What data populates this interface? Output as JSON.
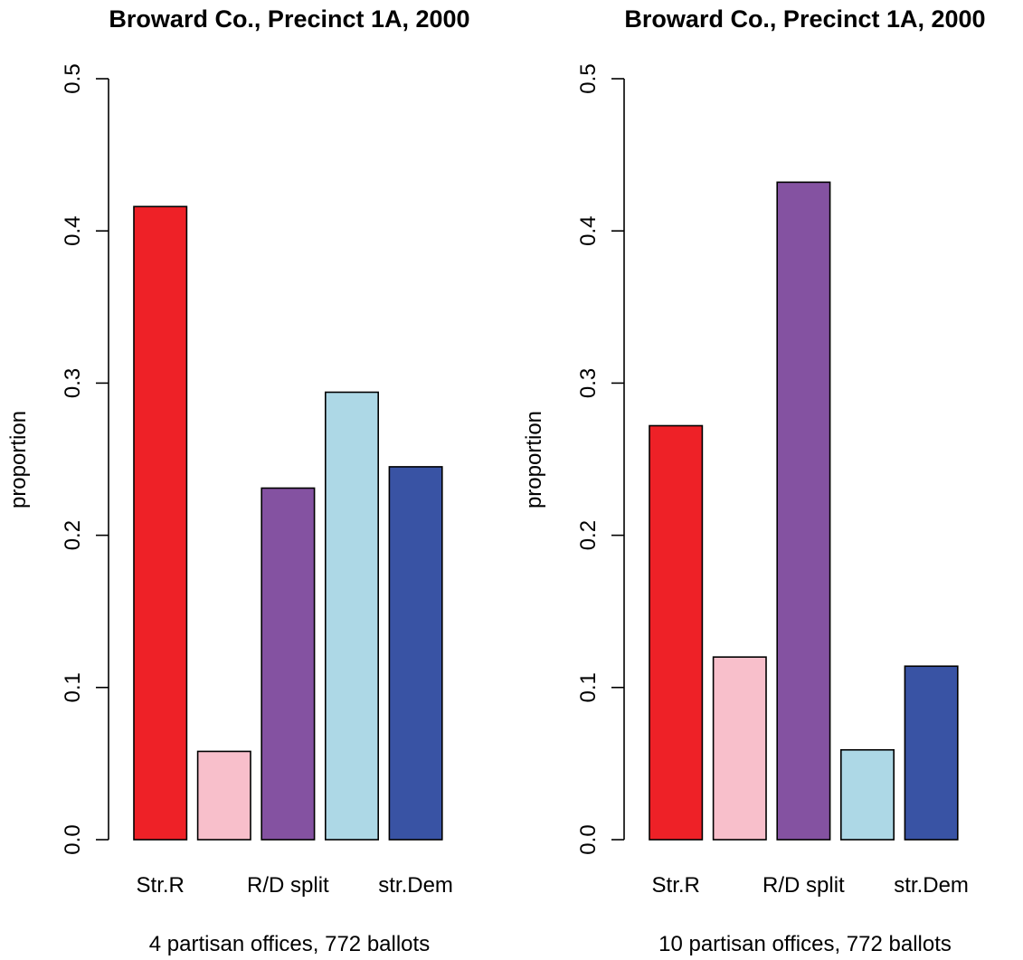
{
  "chart_data": [
    {
      "type": "bar",
      "title": "Broward Co., Precinct 1A, 2000",
      "xlabel": "4 partisan offices, 772 ballots",
      "ylabel": "proportion",
      "ylim": [
        0,
        0.5
      ],
      "yticks": [
        "0.0",
        "0.1",
        "0.2",
        "0.3",
        "0.4",
        "0.5"
      ],
      "category_labels": [
        "Str.R",
        "",
        "R/D split",
        "",
        "str.Dem"
      ],
      "values": [
        0.416,
        0.058,
        0.231,
        0.294,
        0.245
      ],
      "colors": [
        "#ee2127",
        "#f8bfcb",
        "#8452a1",
        "#add8e6",
        "#3953a4"
      ],
      "grid": false,
      "legend": "none"
    },
    {
      "type": "bar",
      "title": "Broward Co., Precinct 1A, 2000",
      "xlabel": "10 partisan offices, 772 ballots",
      "ylabel": "proportion",
      "ylim": [
        0,
        0.5
      ],
      "yticks": [
        "0.0",
        "0.1",
        "0.2",
        "0.3",
        "0.4",
        "0.5"
      ],
      "category_labels": [
        "Str.R",
        "",
        "R/D split",
        "",
        "str.Dem"
      ],
      "values": [
        0.272,
        0.12,
        0.432,
        0.059,
        0.114
      ],
      "colors": [
        "#ee2127",
        "#f8bfcb",
        "#8452a1",
        "#add8e6",
        "#3953a4"
      ],
      "grid": false,
      "legend": "none"
    }
  ]
}
